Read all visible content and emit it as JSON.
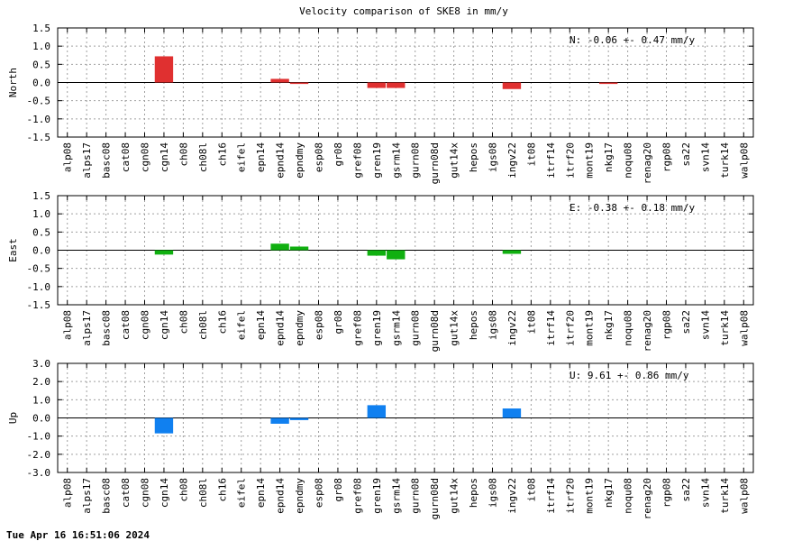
{
  "title": "Velocity comparison of SKE8 in mm/y",
  "timestamp": "Tue Apr 16 16:51:06 2024",
  "chart_data": [
    {
      "type": "bar",
      "ylabel": "North",
      "annotation": "N:  -0.06 +-  0.47 mm/y",
      "color": "#e03030",
      "ylim": [
        -1.5,
        1.5
      ],
      "yticks": [
        "1.5",
        "1.0",
        "0.5",
        "0.0",
        "-0.5",
        "-1.0",
        "-1.5"
      ],
      "grid": true,
      "categories": [
        "alp08",
        "alps17",
        "basc08",
        "cat08",
        "cgn08",
        "cgn14",
        "ch08",
        "ch08l",
        "ch16",
        "eifel",
        "epn14",
        "epnd14",
        "epndmy",
        "esp08",
        "gr08",
        "gref08",
        "gren19",
        "gsrm14",
        "gurn08",
        "gurn08d",
        "gut14x",
        "hepos",
        "igs08",
        "ingv22",
        "it08",
        "itrf14",
        "itrf20",
        "mont19",
        "nkg17",
        "noqu08",
        "renag20",
        "rgp08",
        "sa22",
        "svn14",
        "turk14",
        "walp08"
      ],
      "values": [
        0,
        0,
        0,
        0,
        0,
        0.72,
        0,
        0,
        0,
        0,
        0,
        0.1,
        -0.04,
        0,
        0,
        0,
        -0.15,
        -0.15,
        0,
        0,
        0,
        0,
        0,
        -0.18,
        0,
        0,
        0,
        0,
        -0.04,
        0,
        0,
        0,
        0,
        0,
        0,
        0
      ]
    },
    {
      "type": "bar",
      "ylabel": "East",
      "annotation": "E:  -0.38 +-  0.18 mm/y",
      "color": "#10b010",
      "ylim": [
        -1.5,
        1.5
      ],
      "yticks": [
        "1.5",
        "1.0",
        "0.5",
        "0.0",
        "-0.5",
        "-1.0",
        "-1.5"
      ],
      "grid": true,
      "categories": [
        "alp08",
        "alps17",
        "basc08",
        "cat08",
        "cgn08",
        "cgn14",
        "ch08",
        "ch08l",
        "ch16",
        "eifel",
        "epn14",
        "epnd14",
        "epndmy",
        "esp08",
        "gr08",
        "gref08",
        "gren19",
        "gsrm14",
        "gurn08",
        "gurn08d",
        "gut14x",
        "hepos",
        "igs08",
        "ingv22",
        "it08",
        "itrf14",
        "itrf20",
        "mont19",
        "nkg17",
        "noqu08",
        "renag20",
        "rgp08",
        "sa22",
        "svn14",
        "turk14",
        "walp08"
      ],
      "values": [
        0,
        0,
        0,
        0,
        0,
        -0.12,
        0,
        0,
        0,
        0,
        0,
        0.18,
        0.1,
        0,
        0,
        0,
        -0.15,
        -0.25,
        0,
        0,
        0,
        0,
        0,
        -0.1,
        0,
        0,
        0,
        0,
        0,
        0,
        0,
        0,
        0,
        0,
        0,
        0
      ]
    },
    {
      "type": "bar",
      "ylabel": "Up",
      "annotation": "U:   9.61 +-  0.86 mm/y",
      "color": "#1080f0",
      "ylim": [
        -3.0,
        3.0
      ],
      "yticks": [
        "3.0",
        "2.0",
        "1.0",
        "0.0",
        "-1.0",
        "-2.0",
        "-3.0"
      ],
      "grid": true,
      "categories": [
        "alp08",
        "alps17",
        "basc08",
        "cat08",
        "cgn08",
        "cgn14",
        "ch08",
        "ch08l",
        "ch16",
        "eifel",
        "epn14",
        "epnd14",
        "epndmy",
        "esp08",
        "gr08",
        "gref08",
        "gren19",
        "gsrm14",
        "gurn08",
        "gurn08d",
        "gut14x",
        "hepos",
        "igs08",
        "ingv22",
        "it08",
        "itrf14",
        "itrf20",
        "mont19",
        "nkg17",
        "noqu08",
        "renag20",
        "rgp08",
        "sa22",
        "svn14",
        "turk14",
        "walp08"
      ],
      "values": [
        0,
        0,
        0,
        0,
        0,
        -0.85,
        0,
        0,
        0,
        0,
        0,
        -0.32,
        -0.12,
        0,
        0,
        0,
        0.7,
        0,
        0,
        0,
        0,
        0,
        0,
        0.52,
        0,
        0,
        0,
        0,
        0,
        0,
        0,
        0,
        0,
        0,
        0,
        0
      ]
    }
  ]
}
